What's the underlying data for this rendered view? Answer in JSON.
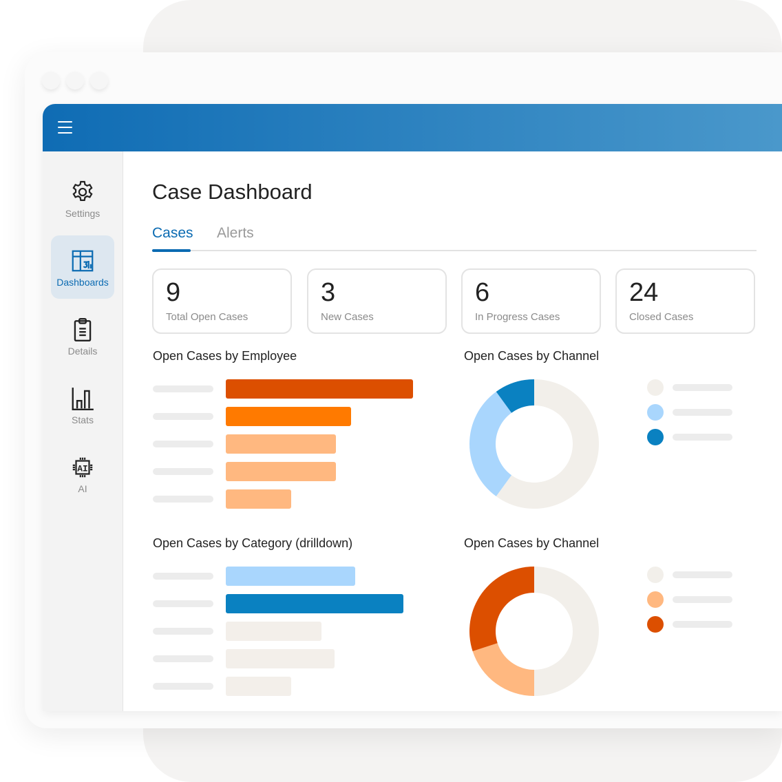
{
  "header": {
    "menu_icon": "hamburger-icon"
  },
  "sidebar": {
    "items": [
      {
        "label": "Settings",
        "icon": "gear-icon"
      },
      {
        "label": "Dashboards",
        "icon": "dashboard-icon",
        "active": true
      },
      {
        "label": "Details",
        "icon": "clipboard-icon"
      },
      {
        "label": "Stats",
        "icon": "bar-chart-icon"
      },
      {
        "label": "AI",
        "icon": "ai-chip-icon"
      }
    ]
  },
  "main": {
    "title": "Case Dashboard",
    "tabs": [
      {
        "label": "Cases",
        "active": true
      },
      {
        "label": "Alerts"
      }
    ],
    "stats": [
      {
        "value": "9",
        "label": "Total Open Cases"
      },
      {
        "value": "3",
        "label": "New Cases"
      },
      {
        "value": "6",
        "label": "In Progress Cases"
      },
      {
        "value": "24",
        "label": "Closed Cases"
      }
    ]
  },
  "colors": {
    "accent": "#0b6bb2"
  },
  "chart_data": [
    {
      "type": "bar",
      "title": "Open Cases by Employee",
      "orientation": "horizontal",
      "values": [
        100,
        67,
        59,
        59,
        35
      ],
      "colors": [
        "#dc4f00",
        "#ff7a00",
        "#ffb880",
        "#ffb880",
        "#ffb880"
      ]
    },
    {
      "type": "pie",
      "title": "Open Cases by Channel",
      "donut": true,
      "values": [
        0.6,
        0.3,
        0.1
      ],
      "colors": [
        "#f2efea",
        "#a9d6fd",
        "#0a81c1"
      ]
    },
    {
      "type": "bar",
      "title": "Open Cases by Category (drilldown)",
      "orientation": "horizontal",
      "values": [
        69,
        95,
        51,
        58,
        35
      ],
      "colors": [
        "#a9d6fd",
        "#0a81c1",
        "#f3efea",
        "#f3efea",
        "#f3efea"
      ]
    },
    {
      "type": "pie",
      "title": "Open Cases by Channel",
      "donut": true,
      "values": [
        0.5,
        0.2,
        0.3
      ],
      "colors": [
        "#f2efea",
        "#ffb880",
        "#dc4f00"
      ]
    }
  ]
}
